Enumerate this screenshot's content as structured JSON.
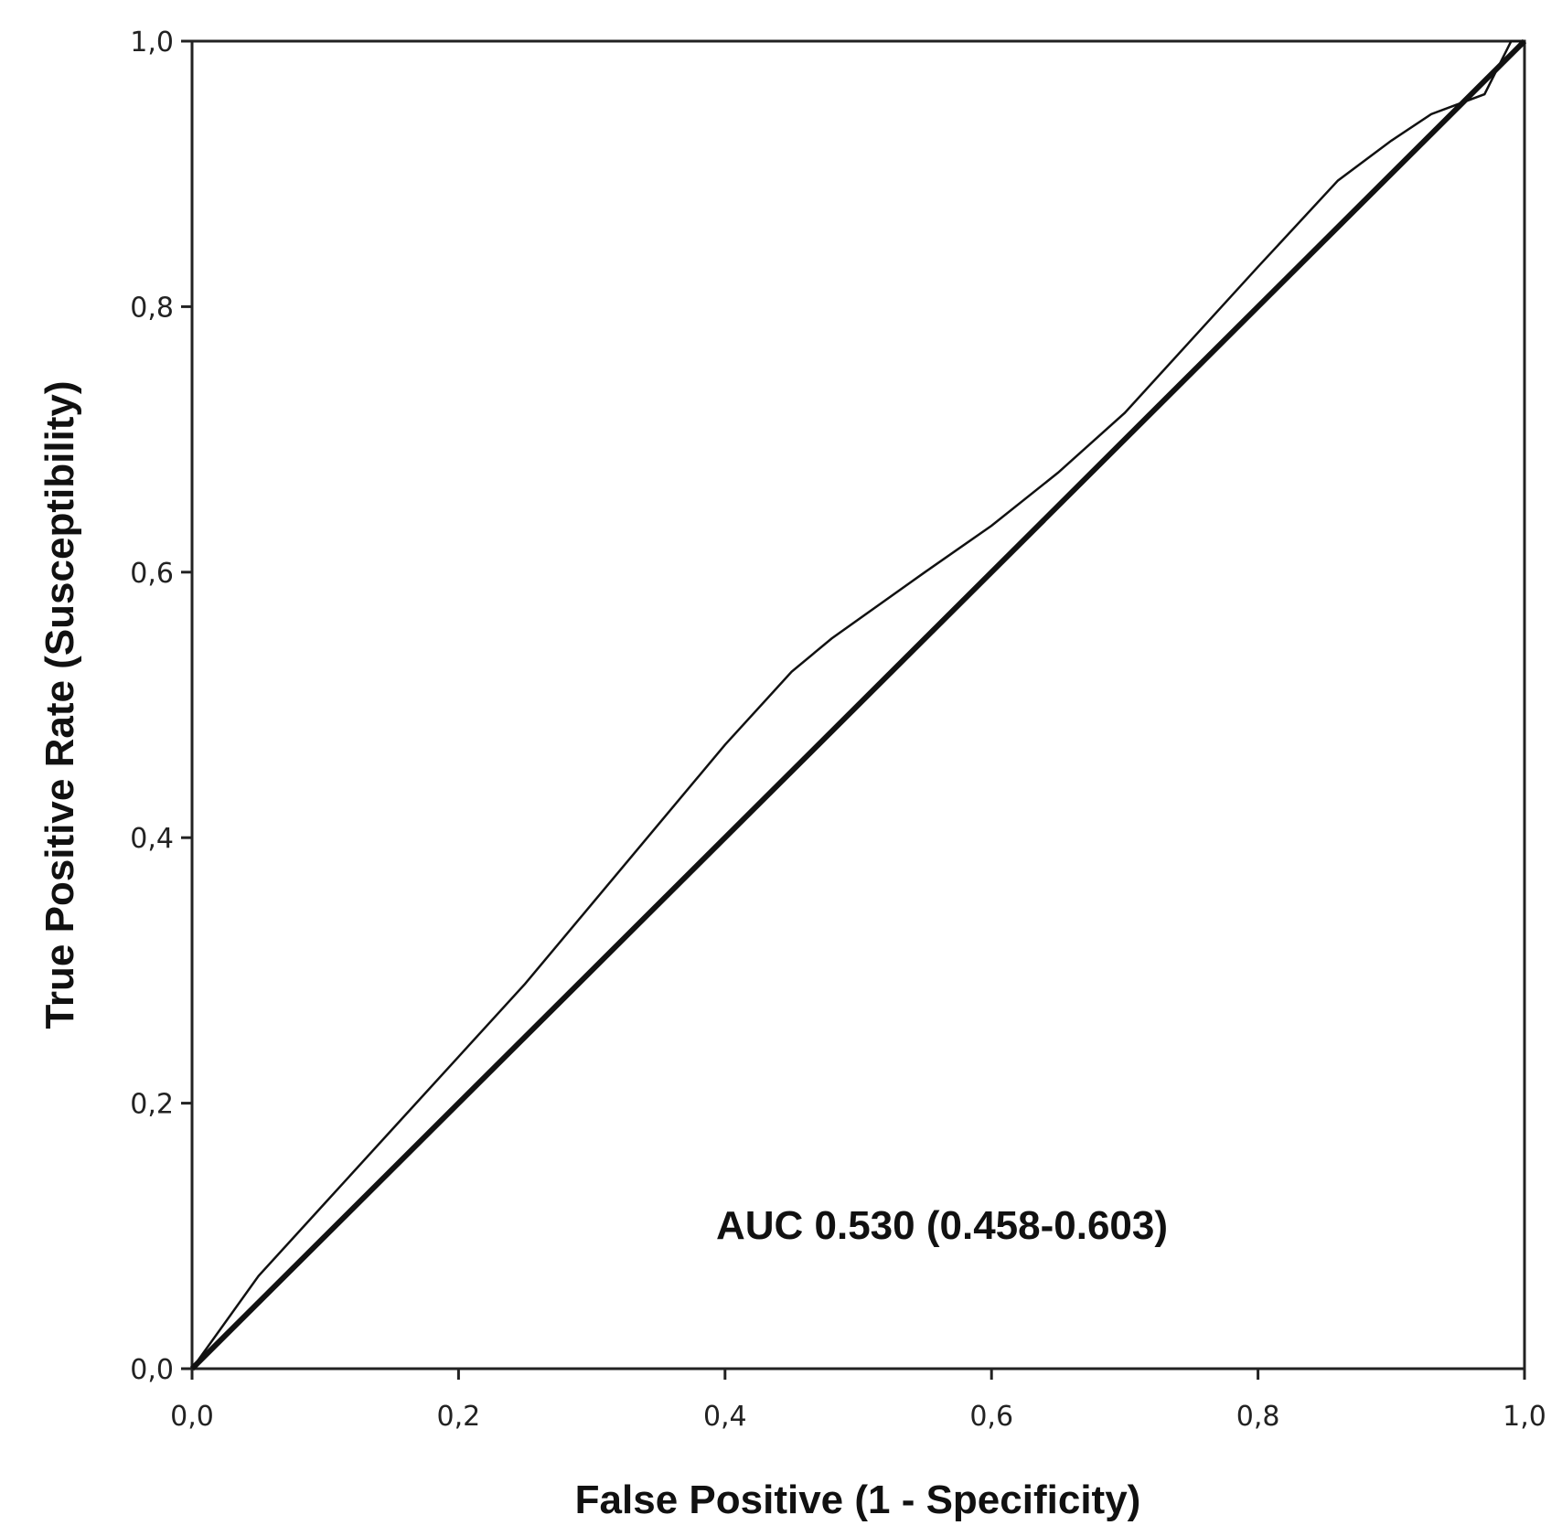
{
  "chart_data": {
    "type": "line",
    "xlabel": "False Positive (1 - Specificity)",
    "ylabel": "True Positive Rate (Susceptibility)",
    "xlim": [
      0,
      1
    ],
    "ylim": [
      0,
      1
    ],
    "x_ticks": [
      "0,0",
      "0,2",
      "0,4",
      "0,6",
      "0,8",
      "1,0"
    ],
    "y_ticks": [
      "0,0",
      "0,2",
      "0,4",
      "0,6",
      "0,8",
      "1,0"
    ],
    "grid": false,
    "annotation": "AUC 0.530 (0.458-0.603)",
    "series": [
      {
        "role": "roc-curve",
        "x": [
          0.0,
          0.05,
          0.1,
          0.15,
          0.2,
          0.25,
          0.3,
          0.35,
          0.4,
          0.45,
          0.48,
          0.55,
          0.6,
          0.65,
          0.7,
          0.75,
          0.8,
          0.86,
          0.9,
          0.93,
          0.97,
          0.99,
          1.0
        ],
        "y": [
          0.0,
          0.07,
          0.125,
          0.18,
          0.235,
          0.29,
          0.35,
          0.41,
          0.47,
          0.525,
          0.55,
          0.6,
          0.635,
          0.675,
          0.72,
          0.775,
          0.83,
          0.895,
          0.925,
          0.945,
          0.96,
          1.0,
          1.0
        ]
      },
      {
        "role": "reference-diagonal",
        "x": [
          0,
          1
        ],
        "y": [
          0,
          1
        ]
      }
    ]
  }
}
